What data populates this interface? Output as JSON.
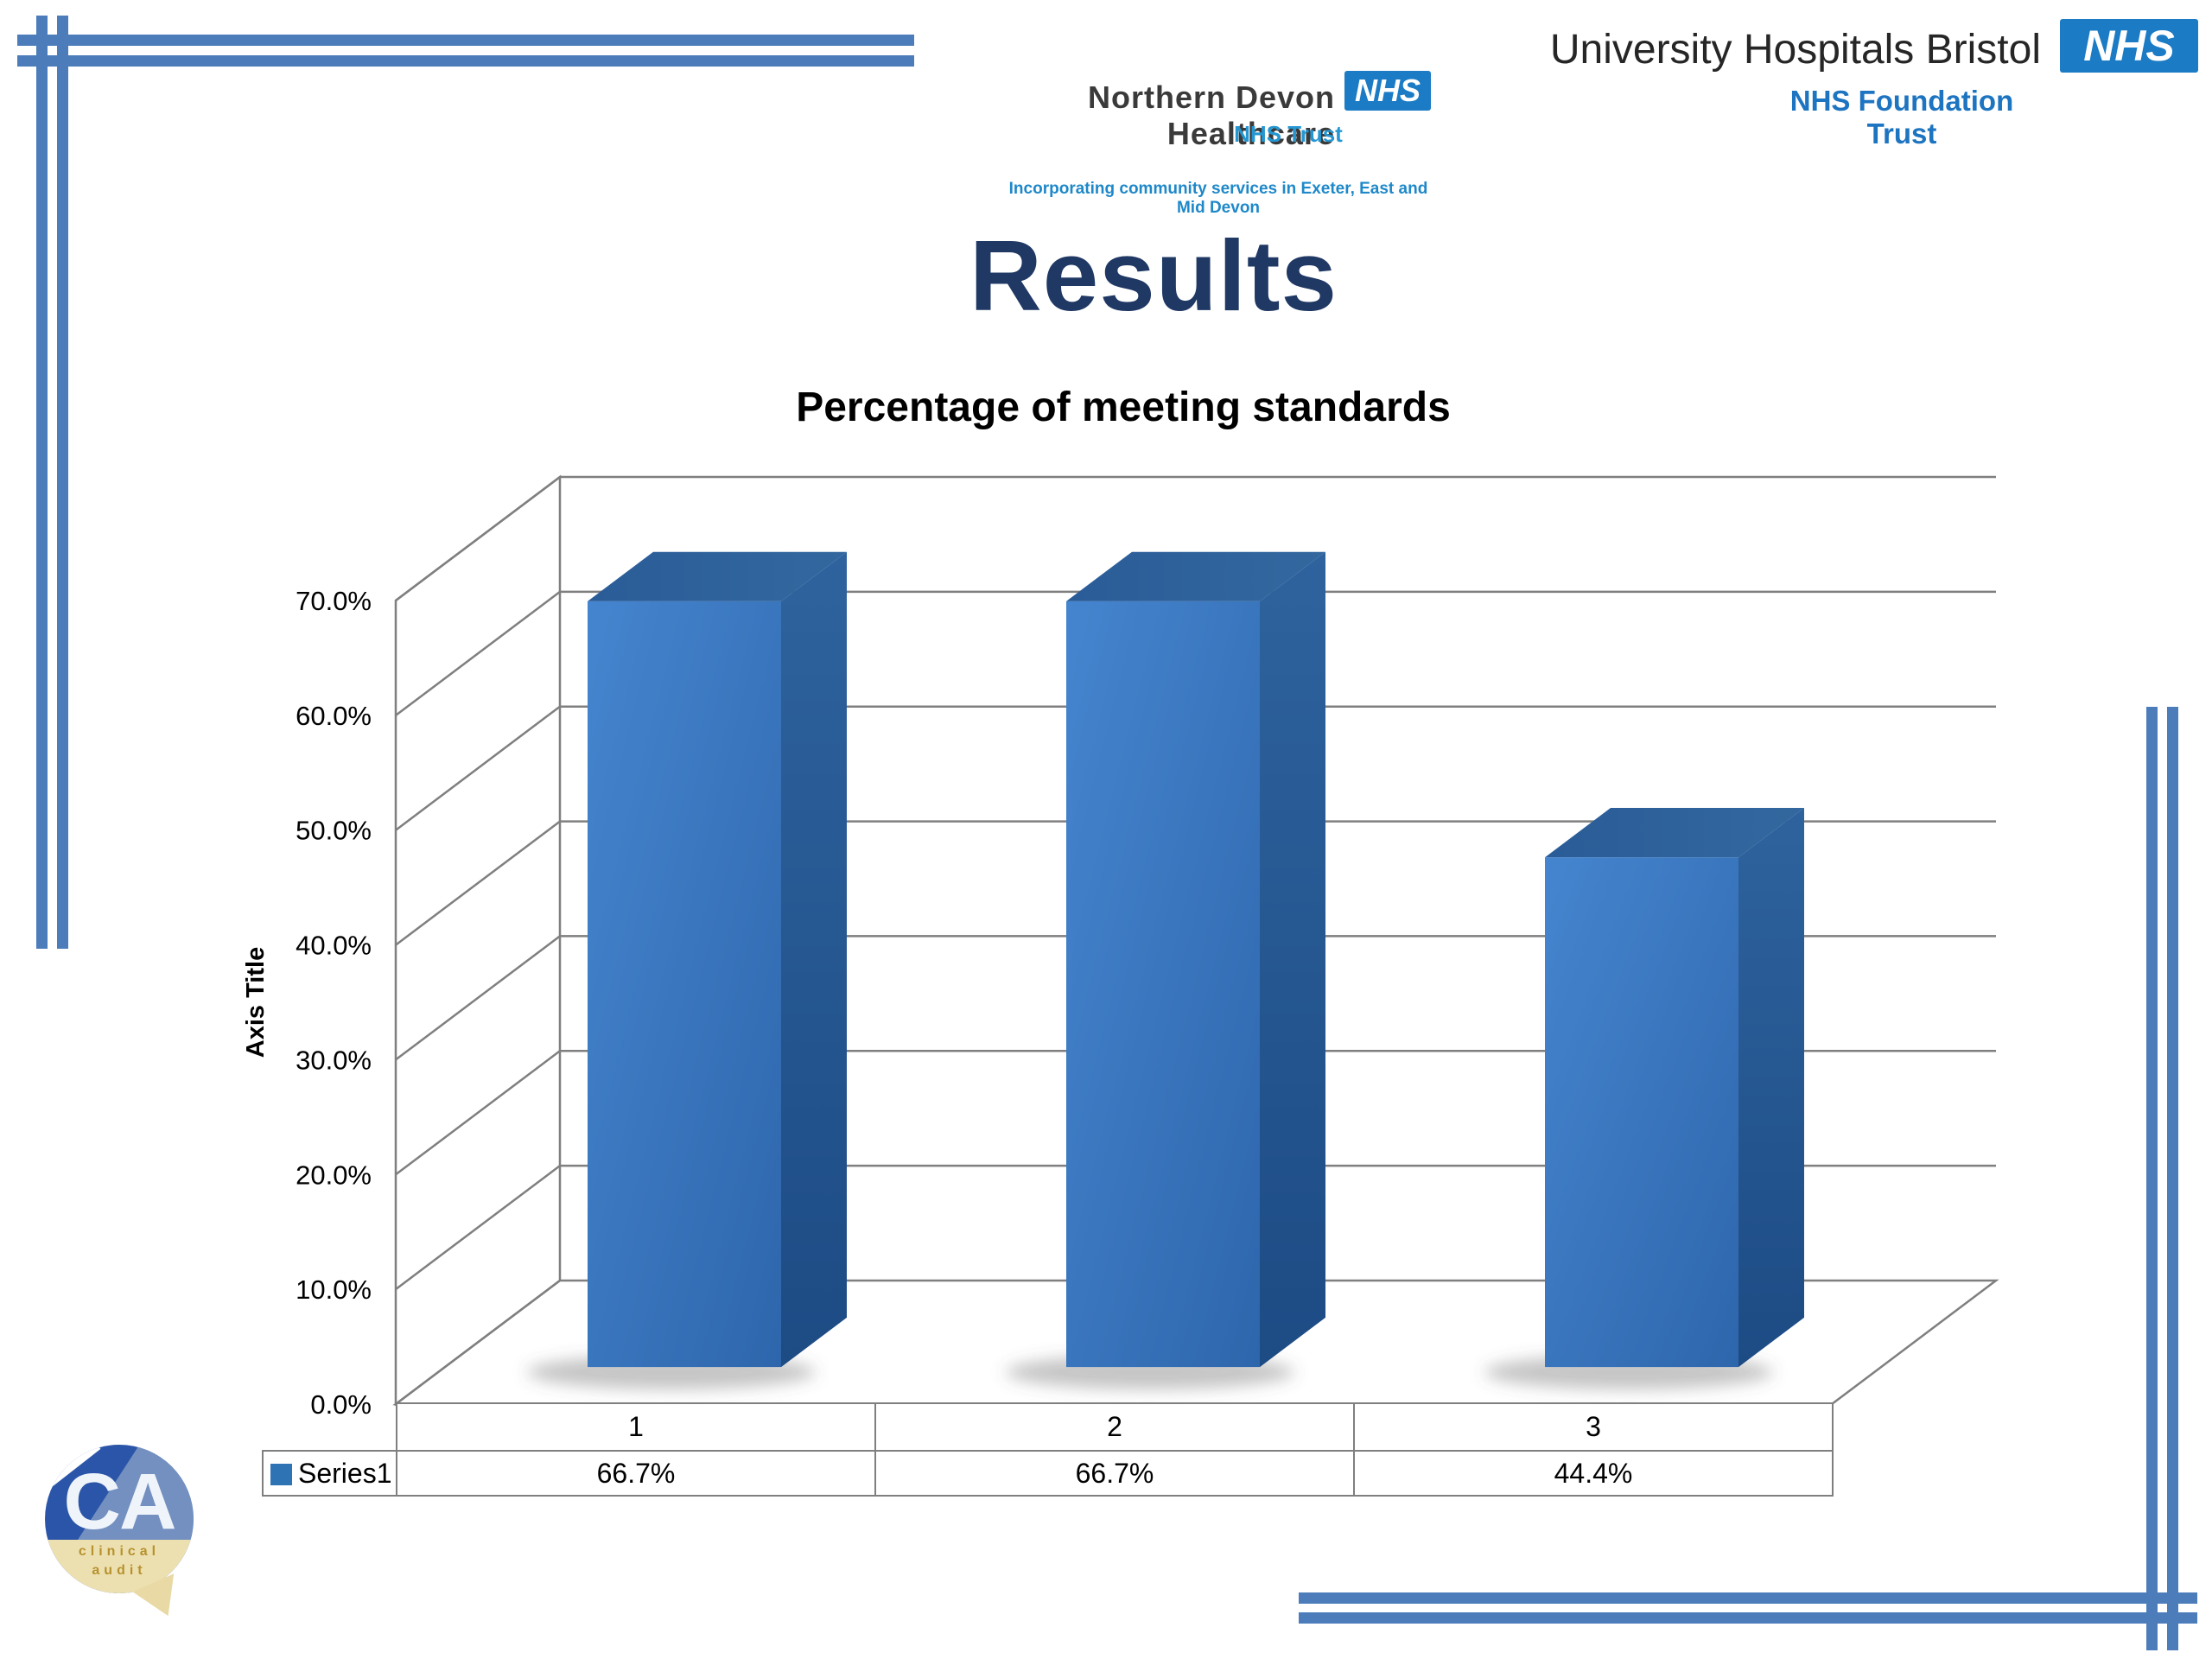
{
  "slide": {
    "title": "Results",
    "subtitle": "Percentage of meeting standards"
  },
  "logos": {
    "northern_devon": {
      "name": "Northern Devon Healthcare",
      "nhs_box": "NHS",
      "descriptor": "NHS Trust",
      "tagline": "Incorporating community services in Exeter, East and Mid Devon"
    },
    "university_hospitals_bristol": {
      "name": "University Hospitals Bristol",
      "nhs_box": "NHS",
      "descriptor": "NHS Foundation Trust"
    },
    "clinical_audit": {
      "initials": "CA",
      "words": [
        "clinical",
        "audit"
      ]
    }
  },
  "chart_data": {
    "type": "bar",
    "projection": "3d",
    "title": "Percentage of meeting standards",
    "categories": [
      "1",
      "2",
      "3"
    ],
    "series": [
      {
        "name": "Series1",
        "values": [
          66.7,
          66.7,
          44.4
        ]
      }
    ],
    "value_labels": [
      "66.7%",
      "66.7%",
      "44.4%"
    ],
    "xlabel": "",
    "ylabel": "Axis Title",
    "ylim": [
      0,
      70
    ],
    "ytick_step": 10,
    "ytick_labels": [
      "0.0%",
      "10.0%",
      "20.0%",
      "30.0%",
      "40.0%",
      "50.0%",
      "60.0%",
      "70.0%"
    ],
    "grid": true,
    "legend": [
      "Series1"
    ],
    "legend_position": "table-left",
    "bar_color": "#3A79C4"
  },
  "colors": {
    "decor_line": "#4C7DBA",
    "nhs_blue": "#1B7BC4",
    "nhs_descriptor_blue": "#2496D1",
    "title_navy": "#1F3864",
    "grid_gray": "#7F7F7F",
    "legend_swatch": "#2E74B5",
    "bar_front": "#3A79C4",
    "bar_top": "#2D6099",
    "bar_side": "#1F4E87",
    "ca_blue": "#2B55A8",
    "ca_cream": "#EDE0B0",
    "ca_gold": "#B6922E"
  }
}
